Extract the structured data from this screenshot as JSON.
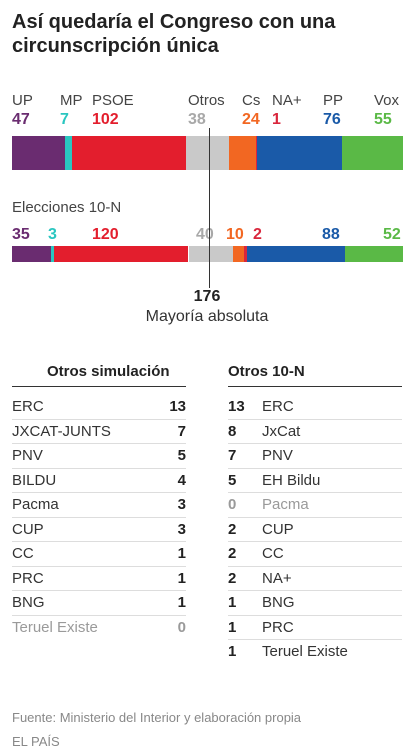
{
  "title": "Así quedaría el Congreso con una circunscripción única",
  "chart_data": [
    {
      "type": "bar",
      "subtitle": "",
      "total_seats": 350,
      "series": [
        {
          "name": "UP",
          "value": 47,
          "color": "#6a2c70"
        },
        {
          "name": "MP",
          "value": 7,
          "color": "#2ac6c0"
        },
        {
          "name": "PSOE",
          "value": 102,
          "color": "#e31e2d"
        },
        {
          "name": "Otros",
          "value": 38,
          "color": "#c9c9c9"
        },
        {
          "name": "Cs",
          "value": 24,
          "color": "#f26722"
        },
        {
          "name": "NA+",
          "value": 1,
          "color": "#d9263c"
        },
        {
          "name": "PP",
          "value": 76,
          "color": "#1a5aa8"
        },
        {
          "name": "Vox",
          "value": 55,
          "color": "#5ab946"
        }
      ]
    },
    {
      "type": "bar",
      "subtitle": "Elecciones 10-N",
      "total_seats": 350,
      "series": [
        {
          "name": "UP",
          "value": 35,
          "color": "#6a2c70"
        },
        {
          "name": "MP",
          "value": 3,
          "color": "#2ac6c0"
        },
        {
          "name": "PSOE",
          "value": 120,
          "color": "#e31e2d"
        },
        {
          "name": "Otros",
          "value": 40,
          "color": "#c9c9c9"
        },
        {
          "name": "Cs",
          "value": 10,
          "color": "#f26722"
        },
        {
          "name": "NA+",
          "value": 2,
          "color": "#d9263c"
        },
        {
          "name": "PP",
          "value": 88,
          "color": "#1a5aa8"
        },
        {
          "name": "Vox",
          "value": 52,
          "color": "#5ab946"
        }
      ]
    }
  ],
  "majority": {
    "value": "176",
    "label": "Mayoría absoluta"
  },
  "tables": {
    "simulation": {
      "heading": "Otros simulación",
      "rows": [
        {
          "name": "ERC",
          "value": "13"
        },
        {
          "name": "JXCAT-JUNTS",
          "value": "7"
        },
        {
          "name": "PNV",
          "value": "5"
        },
        {
          "name": "BILDU",
          "value": "4"
        },
        {
          "name": "Pacma",
          "value": "3"
        },
        {
          "name": "CUP",
          "value": "3"
        },
        {
          "name": "CC",
          "value": "1"
        },
        {
          "name": "PRC",
          "value": "1"
        },
        {
          "name": "BNG",
          "value": "1"
        },
        {
          "name": "Teruel Existe",
          "value": "0",
          "muted": true
        }
      ]
    },
    "election": {
      "heading": "Otros 10-N",
      "rows": [
        {
          "name": "ERC",
          "value": "13"
        },
        {
          "name": "JxCat",
          "value": "8"
        },
        {
          "name": "PNV",
          "value": "7"
        },
        {
          "name": "EH Bildu",
          "value": "5"
        },
        {
          "name": "Pacma",
          "value": "0",
          "muted": true
        },
        {
          "name": "CUP",
          "value": "2"
        },
        {
          "name": "CC",
          "value": "2"
        },
        {
          "name": "NA+",
          "value": "2"
        },
        {
          "name": "BNG",
          "value": "1"
        },
        {
          "name": "PRC",
          "value": "1"
        },
        {
          "name": "Teruel Existe",
          "value": "1"
        }
      ]
    }
  },
  "footer": {
    "source": "Fuente: Ministerio del Interior y elaboración propia",
    "credit": "EL PAÍS"
  }
}
